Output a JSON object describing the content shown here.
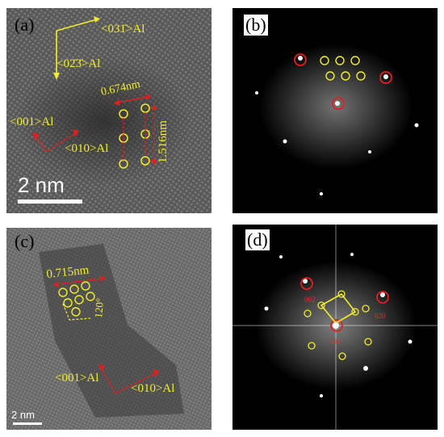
{
  "figure": {
    "panels": [
      {
        "label": "(a)",
        "kind": "hrtem"
      },
      {
        "label": "(b)",
        "kind": "fft"
      },
      {
        "label": "(c)",
        "kind": "hrtem"
      },
      {
        "label": "(d)",
        "kind": "fft"
      }
    ]
  },
  "panel_a": {
    "dir_031": "<031̄>Al",
    "dir_023": "<02̄3̄>Al",
    "spacing_1": "0.674nm",
    "spacing_2": "1.516nm",
    "dir_001": "<001>Al",
    "dir_010": "<010>Al",
    "scale_bar": "2 nm"
  },
  "panel_c": {
    "spacing": "0.715nm",
    "angle": "120°",
    "dir_001": "<001>Al",
    "dir_010": "<010>Al",
    "scale_bar": "2 nm"
  },
  "panel_d": {
    "index_1": "002",
    "index_2": "020",
    "index_3": "000"
  },
  "colors": {
    "annotation_yellow": "#f2ee2a",
    "arrow_red": "#e02020",
    "scale_white": "#ffffff"
  }
}
